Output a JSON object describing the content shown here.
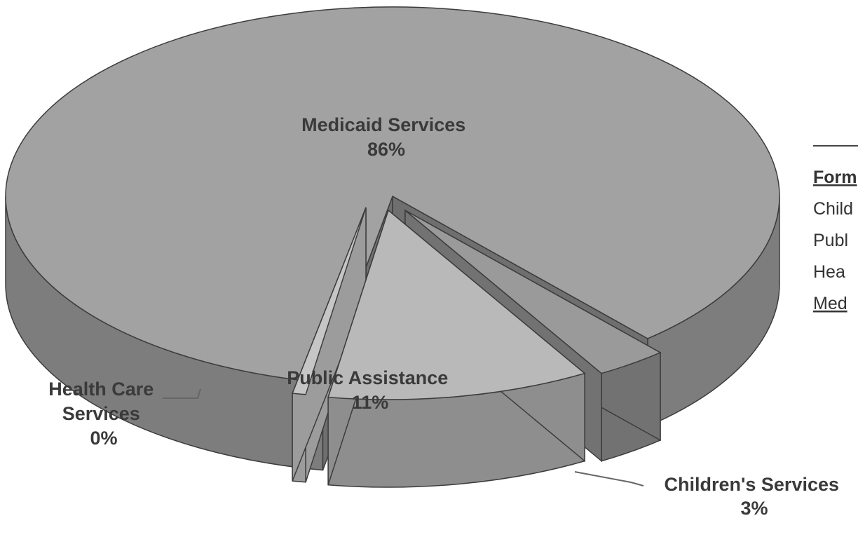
{
  "chart_data": {
    "type": "pie",
    "style": "3d-exploded",
    "slices": [
      {
        "label_lines": [
          "Medicaid Services",
          "86%"
        ],
        "value": 86,
        "top_color": "#a2a2a2",
        "side_color": "#7d7d7d"
      },
      {
        "label_lines": [
          "Children's Services",
          "3%"
        ],
        "value": 3,
        "top_color": "#9a9a9a",
        "side_color": "#727272"
      },
      {
        "label_lines": [
          "Public Assistance",
          "11%"
        ],
        "value": 11,
        "top_color": "#b9b9b9",
        "side_color": "#8e8e8e"
      },
      {
        "label_lines": [
          "Health Care",
          "Services",
          "0%"
        ],
        "value": 0.4,
        "top_color": "#c6c6c6",
        "side_color": "#9c9c9c"
      }
    ],
    "legend_partial": {
      "header": "Form",
      "items": [
        "Child",
        "Publ",
        "Hea",
        "Med"
      ]
    }
  }
}
